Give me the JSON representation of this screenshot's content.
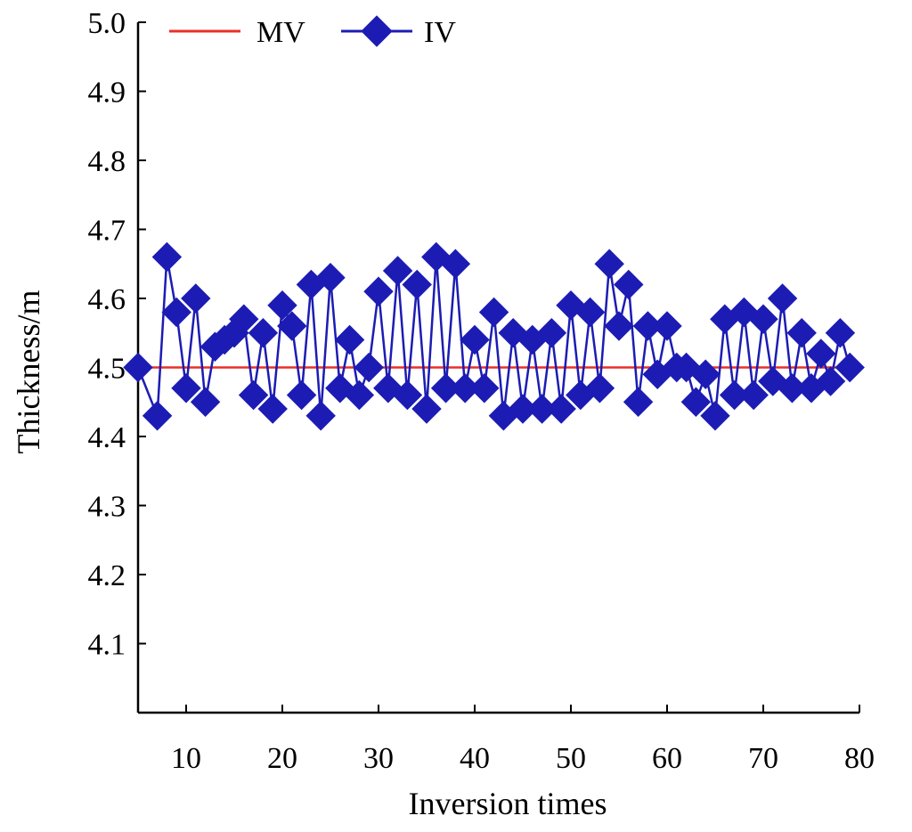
{
  "chart_data": {
    "type": "line",
    "title": "",
    "xlabel": "Inversion times",
    "ylabel": "Thickness/m",
    "xlim": [
      5,
      80
    ],
    "ylim": [
      4.0,
      5.0
    ],
    "xticks": [
      "10",
      "20",
      "30",
      "40",
      "50",
      "60",
      "70",
      "80"
    ],
    "yticks": [
      "4.1",
      "4.2",
      "4.3",
      "4.4",
      "4.5",
      "4.6",
      "4.7",
      "4.8",
      "4.9",
      "5.0"
    ],
    "grid": false,
    "legend_position": "top-left",
    "series": [
      {
        "name": "MV",
        "color": "#e8302a",
        "marker": "none",
        "x": [
          5,
          80
        ],
        "y": [
          4.5,
          4.5
        ]
      },
      {
        "name": "IV",
        "color": "#1c1cb4",
        "marker": "diamond",
        "x": [
          5,
          7,
          8,
          9,
          10,
          11,
          12,
          13,
          14,
          15,
          16,
          17,
          18,
          19,
          20,
          21,
          22,
          23,
          24,
          25,
          26,
          27,
          28,
          29,
          30,
          31,
          32,
          33,
          34,
          35,
          36,
          37,
          38,
          39,
          40,
          41,
          42,
          43,
          44,
          45,
          46,
          47,
          48,
          49,
          50,
          51,
          52,
          53,
          54,
          55,
          56,
          57,
          58,
          59,
          60,
          61,
          62,
          63,
          64,
          65,
          66,
          67,
          68,
          69,
          70,
          71,
          72,
          73,
          74,
          75,
          76,
          77,
          78,
          79
        ],
        "y": [
          4.5,
          4.43,
          4.66,
          4.58,
          4.47,
          4.6,
          4.45,
          4.53,
          4.54,
          4.55,
          4.57,
          4.46,
          4.55,
          4.44,
          4.59,
          4.56,
          4.46,
          4.62,
          4.43,
          4.63,
          4.47,
          4.54,
          4.46,
          4.5,
          4.61,
          4.47,
          4.64,
          4.46,
          4.62,
          4.44,
          4.66,
          4.47,
          4.65,
          4.47,
          4.54,
          4.47,
          4.58,
          4.43,
          4.55,
          4.44,
          4.54,
          4.44,
          4.55,
          4.44,
          4.59,
          4.46,
          4.58,
          4.47,
          4.65,
          4.56,
          4.62,
          4.45,
          4.56,
          4.49,
          4.56,
          4.5,
          4.5,
          4.45,
          4.49,
          4.43,
          4.57,
          4.46,
          4.58,
          4.46,
          4.57,
          4.48,
          4.6,
          4.47,
          4.55,
          4.47,
          4.52,
          4.48,
          4.55,
          4.5
        ]
      }
    ]
  }
}
